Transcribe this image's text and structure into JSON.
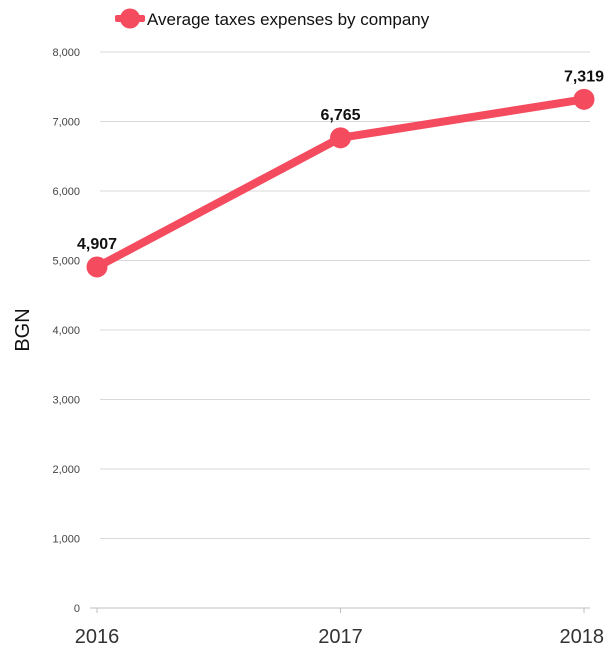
{
  "chart_data": {
    "type": "line",
    "categories": [
      "2016",
      "2017",
      "2018"
    ],
    "series": [
      {
        "name": "Average taxes expenses by company",
        "values": [
          4907,
          6765,
          7319
        ]
      }
    ],
    "data_labels": [
      "4,907",
      "6,765",
      "7,319"
    ],
    "yticks": [
      "0",
      "1,000",
      "2,000",
      "3,000",
      "4,000",
      "5,000",
      "6,000",
      "7,000",
      "8,000"
    ],
    "ylim": [
      0,
      8000
    ],
    "ylabel": "BGN",
    "xlabel": "",
    "grid": true,
    "legend_position": "top",
    "color": "#f44b5e"
  }
}
